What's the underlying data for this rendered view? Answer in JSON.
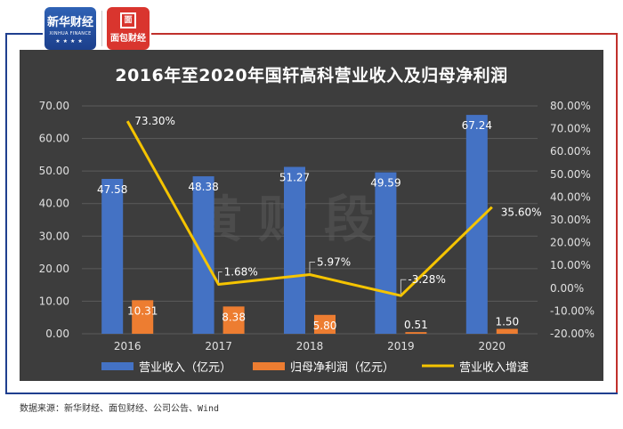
{
  "logos": {
    "xinhua_name": "新华财经",
    "xinhua_sub": "XINHUA FINANCE",
    "mianbao_box": "面",
    "mianbao_name": "面包财经"
  },
  "watermark": "黄财段",
  "source_note": "数据来源：新华财经、面包财经、公司公告、Wind",
  "chart_data": {
    "type": "bar",
    "title": "2016年至2020年国轩高科营业收入及归母净利润",
    "categories": [
      "2016",
      "2017",
      "2018",
      "2019",
      "2020"
    ],
    "series": [
      {
        "name": "营业收入（亿元）",
        "kind": "bar",
        "axis": "left",
        "color": "#4472c4",
        "values": [
          47.58,
          48.38,
          51.27,
          49.59,
          67.24
        ],
        "labels": [
          "47.58",
          "48.38",
          "51.27",
          "49.59",
          "67.24"
        ]
      },
      {
        "name": "归母净利润（亿元）",
        "kind": "bar",
        "axis": "left",
        "color": "#ed7d31",
        "values": [
          10.31,
          8.38,
          5.8,
          0.51,
          1.5
        ],
        "labels": [
          "10.31",
          "8.38",
          "5.80",
          "0.51",
          "1.50"
        ]
      },
      {
        "name": "营业收入增速",
        "kind": "line",
        "axis": "right",
        "color": "#f5c400",
        "values": [
          73.3,
          1.68,
          5.97,
          -3.28,
          35.6
        ],
        "labels": [
          "73.30%",
          "1.68%",
          "5.97%",
          "-3.28%",
          "35.60%"
        ]
      }
    ],
    "y_left": {
      "min": 0,
      "max": 70,
      "step": 10,
      "ticks": [
        "0.00",
        "10.00",
        "20.00",
        "30.00",
        "40.00",
        "50.00",
        "60.00",
        "70.00"
      ]
    },
    "y_right": {
      "min": -20,
      "max": 80,
      "step": 10,
      "ticks": [
        "-20.00%",
        "-10.00%",
        "0.00%",
        "10.00%",
        "20.00%",
        "30.00%",
        "40.00%",
        "50.00%",
        "60.00%",
        "70.00%",
        "80.00%"
      ]
    },
    "grid": true,
    "legend_position": "bottom"
  }
}
